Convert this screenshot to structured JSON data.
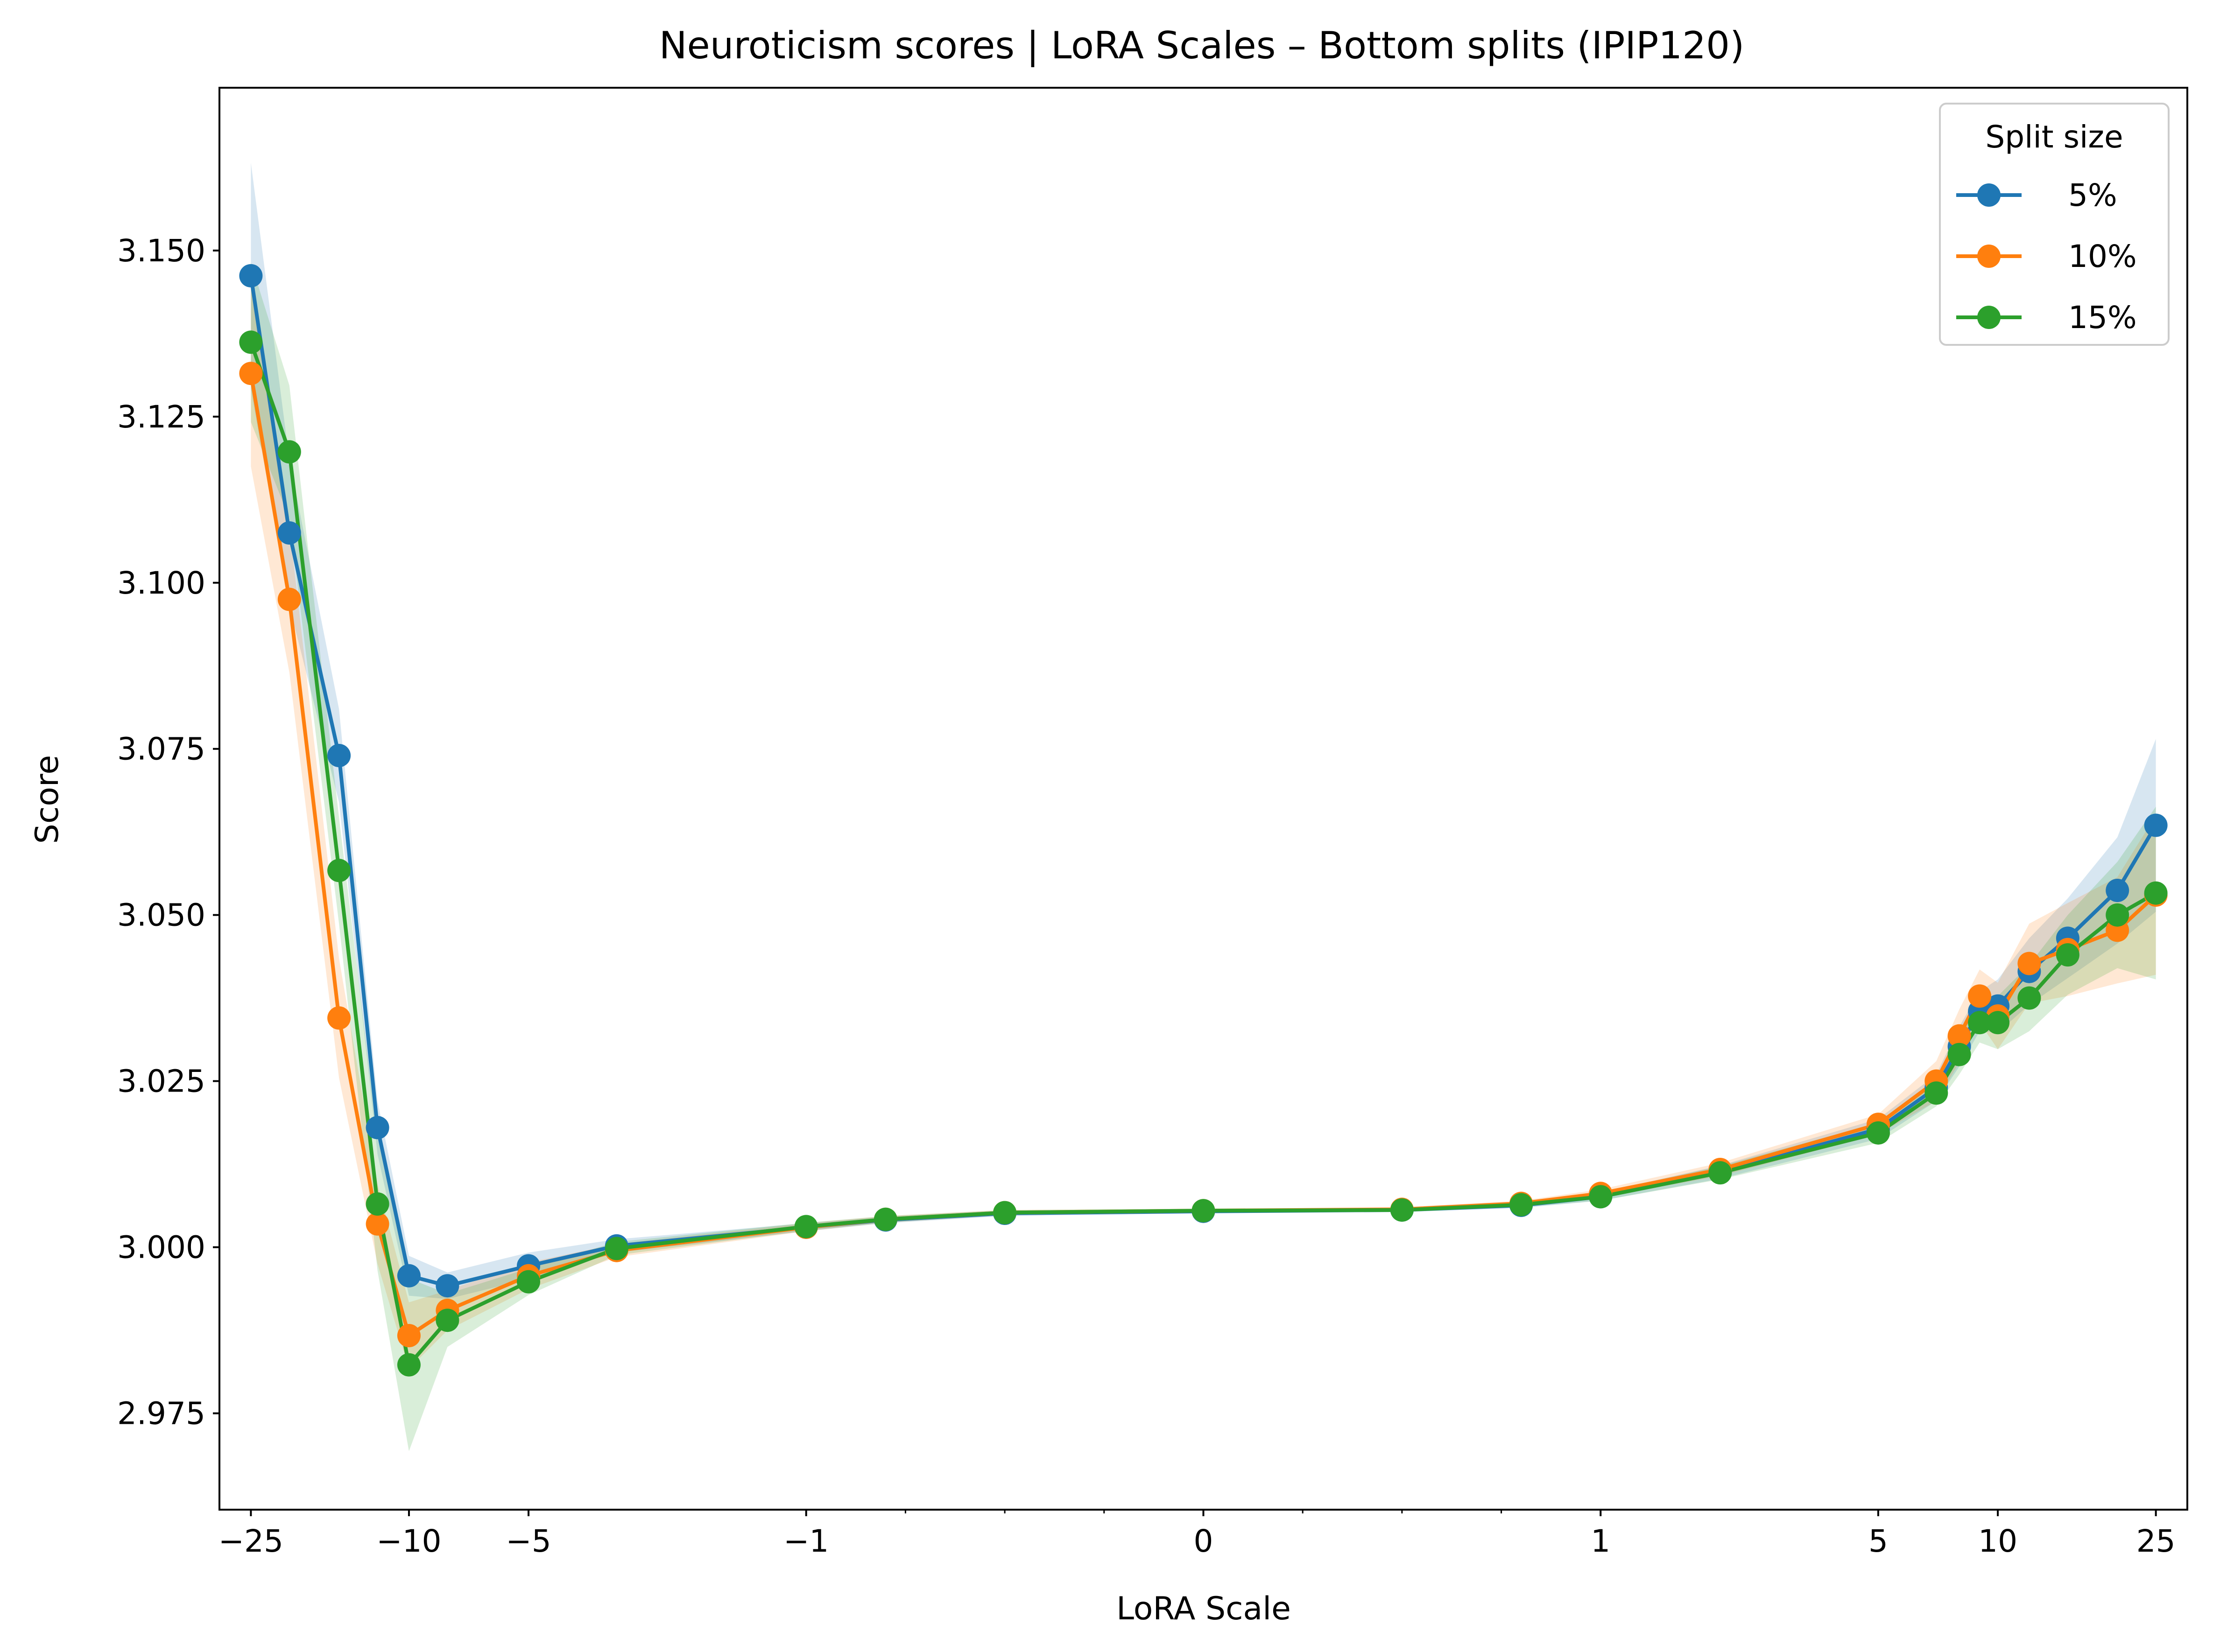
{
  "chart_data": {
    "type": "line",
    "title": "Neuroticism scores | LoRA Scales – Bottom splits (IPIP120)",
    "xlabel": "LoRA Scale",
    "ylabel": "Score",
    "x_scale": "symlog",
    "xlim": [
      -30,
      30
    ],
    "ylim": [
      2.9605,
      3.1745
    ],
    "x_ticks": [
      -25,
      -10,
      -5,
      -1,
      0,
      1,
      5,
      10,
      25
    ],
    "x_tick_labels": [
      "−25",
      "−10",
      "−5",
      "−1",
      "0",
      "1",
      "5",
      "10",
      "25"
    ],
    "y_ticks": [
      2.975,
      3.0,
      3.025,
      3.05,
      3.075,
      3.1,
      3.125,
      3.15
    ],
    "y_tick_labels": [
      "2.975",
      "3.000",
      "3.025",
      "3.050",
      "3.075",
      "3.100",
      "3.125",
      "3.150"
    ],
    "x": [
      -25,
      -20,
      -15,
      -12,
      -10,
      -8,
      -5,
      -3,
      -1,
      -0.8,
      -0.5,
      0,
      0.5,
      0.8,
      1,
      2,
      5,
      7,
      8,
      9,
      10,
      12,
      15,
      20,
      25
    ],
    "legend": {
      "title": "Split size",
      "placement": "top-right"
    },
    "series": [
      {
        "name": "5%",
        "color": "#1f77b4",
        "values": [
          3.1462,
          3.1075,
          3.074,
          3.018,
          2.9957,
          2.9942,
          2.9972,
          3.0002,
          3.003,
          3.0041,
          3.0051,
          3.0054,
          3.0056,
          3.0063,
          3.0076,
          3.0113,
          3.0178,
          3.024,
          3.0302,
          3.0355,
          3.0363,
          3.0415,
          3.0465,
          3.0537,
          3.0635
        ],
        "band": [
          0.017,
          0.011,
          0.007,
          0.004,
          0.003,
          0.002,
          0.002,
          0.001,
          0.0006,
          0.0005,
          0.0004,
          0.0003,
          0.0003,
          0.0004,
          0.0006,
          0.001,
          0.0015,
          0.002,
          0.003,
          0.003,
          0.004,
          0.005,
          0.006,
          0.008,
          0.013
        ]
      },
      {
        "name": "10%",
        "color": "#ff7f0e",
        "values": [
          3.1315,
          3.0975,
          3.0345,
          3.0035,
          2.9867,
          2.9905,
          2.9957,
          2.9995,
          3.003,
          3.0042,
          3.0052,
          3.0055,
          3.0057,
          3.0066,
          3.0081,
          3.0117,
          3.0185,
          3.025,
          3.0318,
          3.0378,
          3.0348,
          3.0427,
          3.0448,
          3.0477,
          3.053
        ],
        "band": [
          0.014,
          0.011,
          0.009,
          0.006,
          0.005,
          0.003,
          0.002,
          0.001,
          0.0006,
          0.0005,
          0.0004,
          0.0003,
          0.0003,
          0.0004,
          0.0006,
          0.001,
          0.0015,
          0.003,
          0.004,
          0.004,
          0.005,
          0.006,
          0.007,
          0.008,
          0.012
        ]
      },
      {
        "name": "15%",
        "color": "#2ca02c",
        "values": [
          3.1362,
          3.1197,
          3.0567,
          3.0065,
          2.9823,
          2.989,
          2.9948,
          2.9998,
          3.0031,
          3.0042,
          3.0052,
          3.0055,
          3.0056,
          3.0064,
          3.0076,
          3.0112,
          3.0172,
          3.0232,
          3.029,
          3.0338,
          3.0338,
          3.0375,
          3.044,
          3.05,
          3.0533
        ],
        "band": [
          0.012,
          0.01,
          0.008,
          0.01,
          0.013,
          0.004,
          0.002,
          0.001,
          0.0006,
          0.0005,
          0.0004,
          0.0003,
          0.0003,
          0.0004,
          0.0006,
          0.001,
          0.0015,
          0.002,
          0.003,
          0.003,
          0.004,
          0.005,
          0.006,
          0.008,
          0.013
        ]
      }
    ]
  }
}
